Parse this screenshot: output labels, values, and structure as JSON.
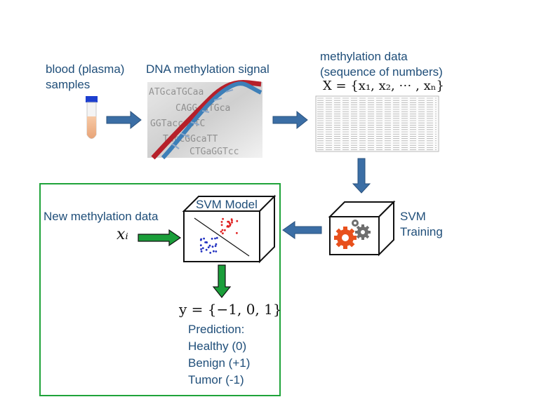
{
  "inputs": {
    "blood_label": [
      "blood (plasma)",
      "samples"
    ],
    "dna_label": "DNA methylation signal",
    "data_label": [
      "methylation data",
      "(sequence of numbers)"
    ],
    "data_formula": "X = {x₁, x₂, ⋯ , xₙ}"
  },
  "training": {
    "label": [
      "SVM",
      "Training"
    ]
  },
  "prediction_box": {
    "new_data_label": "New methylation data",
    "new_data_symbol": "xᵢ",
    "model_label": "SVM Model",
    "output_formula": "y = {−1, 0, 1}",
    "prediction_lines": [
      "Prediction:",
      "Healthy (0)",
      "Benign (+1)",
      "Tumor (-1)"
    ]
  },
  "colors": {
    "label_text": "#1f4e79",
    "arrow_blue": "#3b6ea5",
    "arrow_green": "#1a9e3a",
    "frame_green": "#1fa33a",
    "gear_orange": "#e8501c",
    "gear_gray": "#6e6e6e",
    "cluster_red": "#e02020",
    "cluster_blue": "#2030c0"
  },
  "icons": [
    "test-tube-icon",
    "dna-helix-image",
    "spreadsheet-image",
    "gears-icon"
  ]
}
